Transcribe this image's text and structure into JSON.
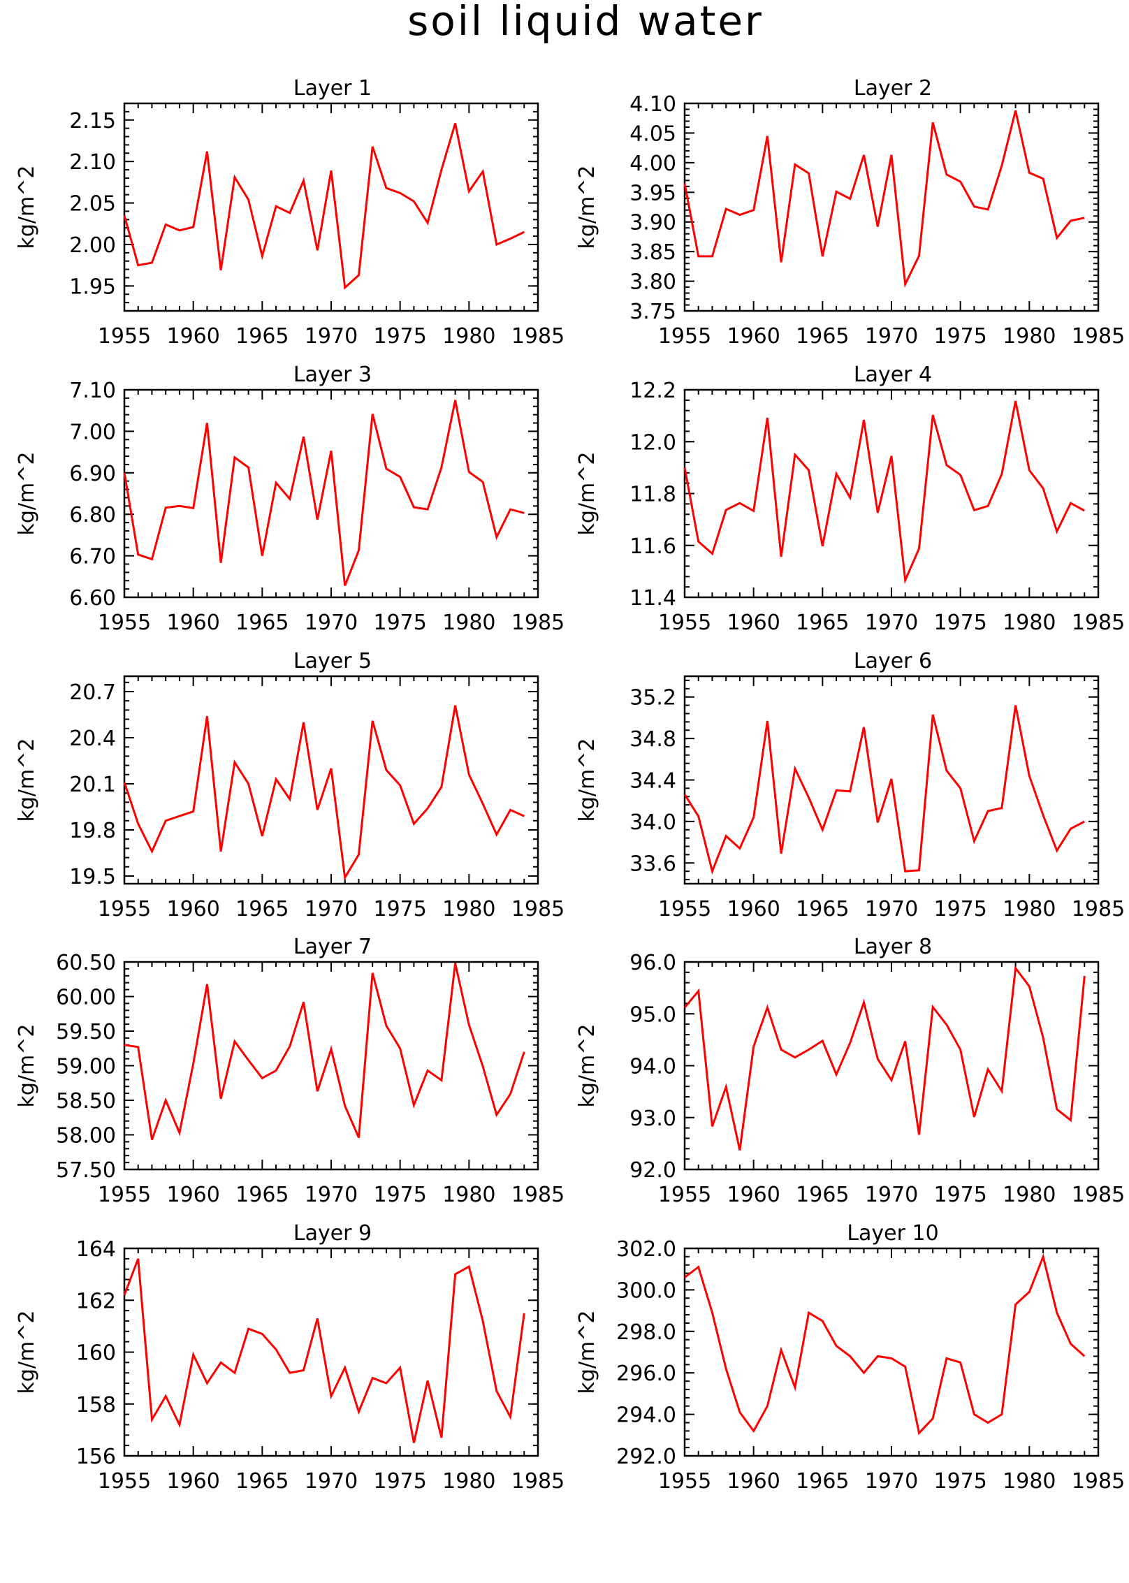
{
  "title": "soil liquid water",
  "colors": {
    "line": "#ff0000",
    "axis": "#000000",
    "background": "#ffffff"
  },
  "chart_data": [
    {
      "type": "line",
      "title": "Layer 1",
      "ylabel": "kg/m^2",
      "xlim": [
        1955,
        1985
      ],
      "ylim": [
        1.92,
        2.17
      ],
      "xticks": [
        1955,
        1960,
        1965,
        1970,
        1975,
        1980,
        1985
      ],
      "yticks": [
        "1.95",
        "2.00",
        "2.05",
        "2.10",
        "2.15"
      ],
      "x": [
        1955,
        1956,
        1957,
        1958,
        1959,
        1960,
        1961,
        1962,
        1963,
        1964,
        1965,
        1966,
        1967,
        1968,
        1969,
        1970,
        1971,
        1972,
        1973,
        1974,
        1975,
        1976,
        1977,
        1978,
        1979,
        1980,
        1981,
        1982,
        1983,
        1984
      ],
      "series": [
        {
          "values": [
            2.035,
            1.975,
            1.978,
            2.024,
            2.017,
            2.021,
            2.112,
            1.969,
            2.081,
            2.054,
            1.986,
            2.046,
            2.038,
            2.077,
            1.993,
            2.089,
            1.948,
            1.963,
            2.118,
            2.068,
            2.062,
            2.052,
            2.026,
            2.09,
            2.146,
            2.064,
            2.088,
            2.0,
            2.007,
            2.015
          ]
        }
      ]
    },
    {
      "type": "line",
      "title": "Layer 2",
      "ylabel": "kg/m^2",
      "xlim": [
        1955,
        1985
      ],
      "ylim": [
        3.75,
        4.1
      ],
      "xticks": [
        1955,
        1960,
        1965,
        1970,
        1975,
        1980,
        1985
      ],
      "yticks": [
        "3.75",
        "3.80",
        "3.85",
        "3.90",
        "3.95",
        "4.00",
        "4.05",
        "4.10"
      ],
      "x": [
        1955,
        1956,
        1957,
        1958,
        1959,
        1960,
        1961,
        1962,
        1963,
        1964,
        1965,
        1966,
        1967,
        1968,
        1969,
        1970,
        1971,
        1972,
        1973,
        1974,
        1975,
        1976,
        1977,
        1978,
        1979,
        1980,
        1981,
        1982,
        1983,
        1984
      ],
      "series": [
        {
          "values": [
            3.965,
            3.842,
            3.842,
            3.922,
            3.912,
            3.92,
            4.045,
            3.832,
            3.997,
            3.982,
            3.842,
            3.951,
            3.939,
            4.013,
            3.892,
            4.013,
            3.795,
            3.843,
            4.068,
            3.98,
            3.968,
            3.926,
            3.921,
            3.995,
            4.088,
            3.983,
            3.973,
            3.873,
            3.902,
            3.907
          ]
        }
      ]
    },
    {
      "type": "line",
      "title": "Layer 3",
      "ylabel": "kg/m^2",
      "xlim": [
        1955,
        1985
      ],
      "ylim": [
        6.6,
        7.1
      ],
      "xticks": [
        1955,
        1960,
        1965,
        1970,
        1975,
        1980,
        1985
      ],
      "yticks": [
        "6.60",
        "6.70",
        "6.80",
        "6.90",
        "7.00",
        "7.10"
      ],
      "x": [
        1955,
        1956,
        1957,
        1958,
        1959,
        1960,
        1961,
        1962,
        1963,
        1964,
        1965,
        1966,
        1967,
        1968,
        1969,
        1970,
        1971,
        1972,
        1973,
        1974,
        1975,
        1976,
        1977,
        1978,
        1979,
        1980,
        1981,
        1982,
        1983,
        1984
      ],
      "series": [
        {
          "values": [
            6.9,
            6.703,
            6.692,
            6.816,
            6.82,
            6.815,
            7.02,
            6.683,
            6.937,
            6.913,
            6.7,
            6.876,
            6.837,
            6.987,
            6.787,
            6.953,
            6.628,
            6.713,
            7.042,
            6.91,
            6.89,
            6.817,
            6.812,
            6.913,
            7.075,
            6.902,
            6.878,
            6.745,
            6.812,
            6.803
          ]
        }
      ]
    },
    {
      "type": "line",
      "title": "Layer 4",
      "ylabel": "kg/m^2",
      "xlim": [
        1955,
        1985
      ],
      "ylim": [
        11.4,
        12.2
      ],
      "xticks": [
        1955,
        1960,
        1965,
        1970,
        1975,
        1980,
        1985
      ],
      "yticks": [
        "11.4",
        "11.6",
        "11.8",
        "12.0",
        "12.2"
      ],
      "x": [
        1955,
        1956,
        1957,
        1958,
        1959,
        1960,
        1961,
        1962,
        1963,
        1964,
        1965,
        1966,
        1967,
        1968,
        1969,
        1970,
        1971,
        1972,
        1973,
        1974,
        1975,
        1976,
        1977,
        1978,
        1979,
        1980,
        1981,
        1982,
        1983,
        1984
      ],
      "series": [
        {
          "values": [
            11.9,
            11.615,
            11.568,
            11.737,
            11.763,
            11.733,
            12.092,
            11.556,
            11.95,
            11.89,
            11.597,
            11.876,
            11.784,
            12.084,
            11.726,
            11.945,
            11.466,
            11.588,
            12.103,
            11.91,
            11.872,
            11.736,
            11.752,
            11.875,
            12.157,
            11.89,
            11.82,
            11.654,
            11.763,
            11.734
          ]
        }
      ]
    },
    {
      "type": "line",
      "title": "Layer 5",
      "ylabel": "kg/m^2",
      "xlim": [
        1955,
        1985
      ],
      "ylim": [
        19.45,
        20.8
      ],
      "xticks": [
        1955,
        1960,
        1965,
        1970,
        1975,
        1980,
        1985
      ],
      "yticks": [
        "19.5",
        "19.8",
        "20.1",
        "20.4",
        "20.7"
      ],
      "x": [
        1955,
        1956,
        1957,
        1958,
        1959,
        1960,
        1961,
        1962,
        1963,
        1964,
        1965,
        1966,
        1967,
        1968,
        1969,
        1970,
        1971,
        1972,
        1973,
        1974,
        1975,
        1976,
        1977,
        1978,
        1979,
        1980,
        1981,
        1982,
        1983,
        1984
      ],
      "series": [
        {
          "values": [
            20.11,
            19.84,
            19.66,
            19.86,
            19.89,
            19.92,
            20.54,
            19.66,
            20.24,
            20.1,
            19.76,
            20.13,
            20.0,
            20.5,
            19.93,
            20.2,
            19.49,
            19.64,
            20.51,
            20.19,
            20.09,
            19.84,
            19.94,
            20.08,
            20.61,
            20.16,
            19.97,
            19.77,
            19.93,
            19.89
          ]
        }
      ]
    },
    {
      "type": "line",
      "title": "Layer 6",
      "ylabel": "kg/m^2",
      "xlim": [
        1955,
        1985
      ],
      "ylim": [
        33.4,
        35.4
      ],
      "xticks": [
        1955,
        1960,
        1965,
        1970,
        1975,
        1980,
        1985
      ],
      "yticks": [
        "33.6",
        "34.0",
        "34.4",
        "34.8",
        "35.2"
      ],
      "x": [
        1955,
        1956,
        1957,
        1958,
        1959,
        1960,
        1961,
        1962,
        1963,
        1964,
        1965,
        1966,
        1967,
        1968,
        1969,
        1970,
        1971,
        1972,
        1973,
        1974,
        1975,
        1976,
        1977,
        1978,
        1979,
        1980,
        1981,
        1982,
        1983,
        1984
      ],
      "series": [
        {
          "values": [
            34.26,
            34.05,
            33.52,
            33.86,
            33.74,
            34.04,
            34.97,
            33.69,
            34.51,
            34.23,
            33.92,
            34.3,
            34.29,
            34.91,
            33.99,
            34.41,
            33.52,
            33.53,
            35.03,
            34.49,
            34.32,
            33.81,
            34.1,
            34.13,
            35.12,
            34.44,
            34.06,
            33.72,
            33.93,
            34.0
          ]
        }
      ]
    },
    {
      "type": "line",
      "title": "Layer 7",
      "ylabel": "kg/m^2",
      "xlim": [
        1955,
        1985
      ],
      "ylim": [
        57.5,
        60.5
      ],
      "xticks": [
        1955,
        1960,
        1965,
        1970,
        1975,
        1980,
        1985
      ],
      "yticks": [
        "57.50",
        "58.00",
        "58.50",
        "59.00",
        "59.50",
        "60.00",
        "60.50"
      ],
      "x": [
        1955,
        1956,
        1957,
        1958,
        1959,
        1960,
        1961,
        1962,
        1963,
        1964,
        1965,
        1966,
        1967,
        1968,
        1969,
        1970,
        1971,
        1972,
        1973,
        1974,
        1975,
        1976,
        1977,
        1978,
        1979,
        1980,
        1981,
        1982,
        1983,
        1984
      ],
      "series": [
        {
          "values": [
            59.3,
            59.27,
            57.93,
            58.5,
            58.03,
            59.03,
            60.18,
            58.52,
            59.35,
            59.08,
            58.82,
            58.93,
            59.28,
            59.92,
            58.63,
            59.24,
            58.42,
            57.96,
            60.34,
            59.58,
            59.25,
            58.43,
            58.93,
            58.79,
            60.48,
            59.59,
            58.99,
            58.29,
            58.59,
            59.2
          ]
        }
      ]
    },
    {
      "type": "line",
      "title": "Layer 8",
      "ylabel": "kg/m^2",
      "xlim": [
        1955,
        1985
      ],
      "ylim": [
        92.0,
        96.0
      ],
      "xticks": [
        1955,
        1960,
        1965,
        1970,
        1975,
        1980,
        1985
      ],
      "yticks": [
        "92.0",
        "93.0",
        "94.0",
        "95.0",
        "96.0"
      ],
      "x": [
        1955,
        1956,
        1957,
        1958,
        1959,
        1960,
        1961,
        1962,
        1963,
        1964,
        1965,
        1966,
        1967,
        1968,
        1969,
        1970,
        1971,
        1972,
        1973,
        1974,
        1975,
        1976,
        1977,
        1978,
        1979,
        1980,
        1981,
        1982,
        1983,
        1984
      ],
      "series": [
        {
          "values": [
            95.12,
            95.44,
            92.83,
            93.59,
            92.37,
            94.37,
            95.12,
            94.31,
            94.16,
            94.31,
            94.48,
            93.83,
            94.44,
            95.22,
            94.13,
            93.72,
            94.47,
            92.67,
            95.13,
            94.79,
            94.31,
            93.01,
            93.93,
            93.51,
            95.88,
            95.53,
            94.54,
            93.16,
            92.95,
            95.73
          ]
        }
      ]
    },
    {
      "type": "line",
      "title": "Layer 9",
      "ylabel": "kg/m^2",
      "xlim": [
        1955,
        1985
      ],
      "ylim": [
        156,
        164
      ],
      "xticks": [
        1955,
        1960,
        1965,
        1970,
        1975,
        1980,
        1985
      ],
      "yticks": [
        "156",
        "158",
        "160",
        "162",
        "164"
      ],
      "x": [
        1955,
        1956,
        1957,
        1958,
        1959,
        1960,
        1961,
        1962,
        1963,
        1964,
        1965,
        1966,
        1967,
        1968,
        1969,
        1970,
        1971,
        1972,
        1973,
        1974,
        1975,
        1976,
        1977,
        1978,
        1979,
        1980,
        1981,
        1982,
        1983,
        1984
      ],
      "series": [
        {
          "values": [
            162.2,
            163.6,
            157.4,
            158.3,
            157.2,
            159.9,
            158.8,
            159.6,
            159.2,
            160.9,
            160.7,
            160.1,
            159.2,
            159.3,
            161.3,
            158.3,
            159.4,
            157.7,
            159.0,
            158.8,
            159.4,
            156.5,
            158.9,
            156.7,
            163.0,
            163.3,
            161.2,
            158.5,
            157.5,
            161.5
          ]
        }
      ]
    },
    {
      "type": "line",
      "title": "Layer 10",
      "ylabel": "kg/m^2",
      "xlim": [
        1955,
        1985
      ],
      "ylim": [
        292.0,
        302.0
      ],
      "xticks": [
        1955,
        1960,
        1965,
        1970,
        1975,
        1980,
        1985
      ],
      "yticks": [
        "292.0",
        "294.0",
        "296.0",
        "298.0",
        "300.0",
        "302.0"
      ],
      "x": [
        1955,
        1956,
        1957,
        1958,
        1959,
        1960,
        1961,
        1962,
        1963,
        1964,
        1965,
        1966,
        1967,
        1968,
        1969,
        1970,
        1971,
        1972,
        1973,
        1974,
        1975,
        1976,
        1977,
        1978,
        1979,
        1980,
        1981,
        1982,
        1983,
        1984
      ],
      "series": [
        {
          "values": [
            300.6,
            301.1,
            298.9,
            296.2,
            294.1,
            293.2,
            294.4,
            297.1,
            295.3,
            298.9,
            298.5,
            297.3,
            296.8,
            296.0,
            296.8,
            296.7,
            296.3,
            293.1,
            293.8,
            296.7,
            296.5,
            294.0,
            293.6,
            294.0,
            299.3,
            299.9,
            301.6,
            298.9,
            297.4,
            296.8
          ]
        }
      ]
    }
  ]
}
